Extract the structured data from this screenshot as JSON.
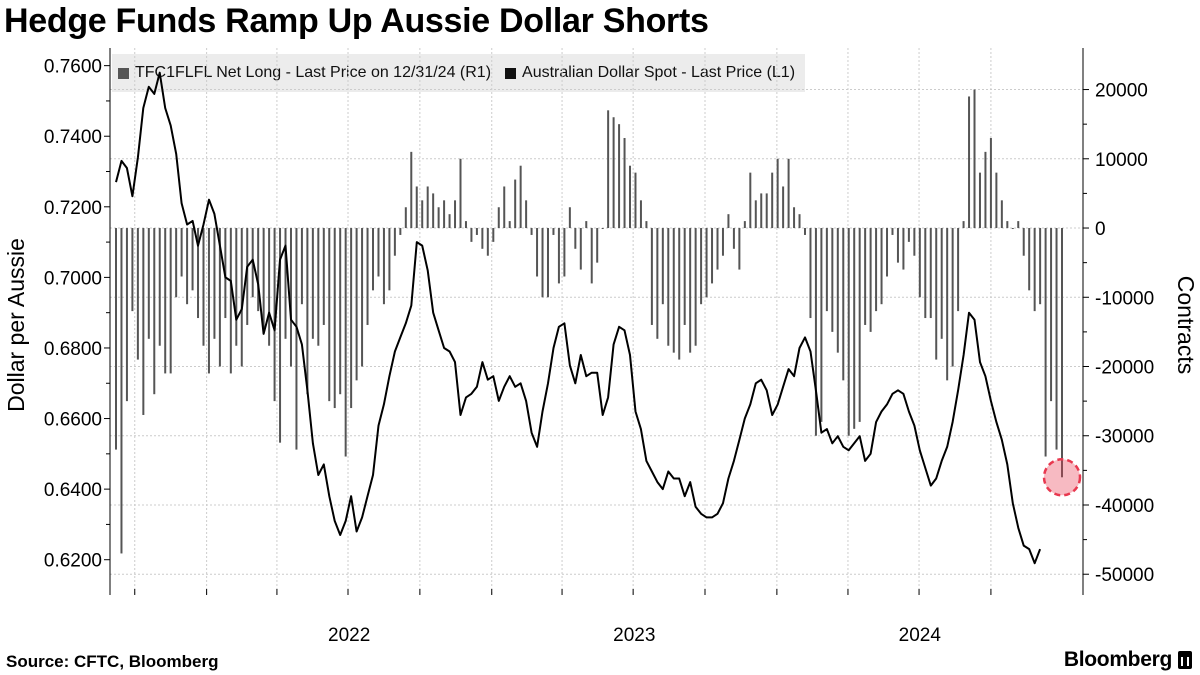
{
  "header": {
    "title": "Hedge Funds Ramp Up Aussie Dollar Shorts"
  },
  "footer": {
    "source": "Source: CFTC, Bloomberg",
    "brand": "Bloomberg"
  },
  "chart_data": {
    "type": "line+bar",
    "title": "Hedge Funds Ramp Up Aussie Dollar Shorts",
    "ylabel_left": "Dollar per Aussie",
    "ylabel_right": "Contracts",
    "ylim_left": [
      0.61,
      0.765
    ],
    "ylim_right": [
      -53000,
      26000
    ],
    "yticks_left": [
      "0.7600",
      "0.7400",
      "0.7200",
      "0.7000",
      "0.6800",
      "0.6600",
      "0.6400",
      "0.6200"
    ],
    "yticks_right": [
      "20000",
      "10000",
      "0",
      "-10000",
      "-20000",
      "-30000",
      "-40000",
      "-50000"
    ],
    "xticks": [
      "2022",
      "2023",
      "2024"
    ],
    "grid": true,
    "legend_position": "top",
    "colors": {
      "bars": "#555555",
      "line": "#000000",
      "highlight": "#e8384f",
      "grid": "#cccccc"
    },
    "series": [
      {
        "name": "TFC1FLFL Net Long - Last Price on 12/31/24 (R1)",
        "type": "bar",
        "axis": "right",
        "frequency": "weekly",
        "start": "2021-09-07",
        "values": [
          -32000,
          -47000,
          -25000,
          -12000,
          -19000,
          -27000,
          -16000,
          -24000,
          -17000,
          -21000,
          -21000,
          -10000,
          -7000,
          -11000,
          -9000,
          -13000,
          -17000,
          -21000,
          -16000,
          -20000,
          -13000,
          -21000,
          -17000,
          -20000,
          -14000,
          -10000,
          -12000,
          -15000,
          -17000,
          -25000,
          -31000,
          -16000,
          -20000,
          -32000,
          -11000,
          -24000,
          -16000,
          -17000,
          -14000,
          -25000,
          -26000,
          -24000,
          -33000,
          -26000,
          -22000,
          -20000,
          -14000,
          -9000,
          -7000,
          -11000,
          -9000,
          -4000,
          -1000,
          3000,
          11000,
          6000,
          4000,
          6000,
          5000,
          3000,
          4000,
          2000,
          4000,
          10000,
          1000,
          -2000,
          -1000,
          -3000,
          -4000,
          -2000,
          3000,
          6000,
          1000,
          7000,
          9000,
          4000,
          -1000,
          -7000,
          -10000,
          -10000,
          -1000,
          -8000,
          -7000,
          3000,
          -3000,
          -6000,
          1000,
          -8000,
          -5000,
          0,
          17000,
          16000,
          15000,
          13000,
          9000,
          8000,
          4000,
          1000,
          -14000,
          -16000,
          -11000,
          -17000,
          -18000,
          -19000,
          -14000,
          -18000,
          -17000,
          -11000,
          -10000,
          -8000,
          -6000,
          -4000,
          2000,
          -3000,
          -6000,
          1000,
          8000,
          4000,
          5000,
          5000,
          8000,
          10000,
          6000,
          10000,
          3000,
          2000,
          -1000,
          -13000,
          -30000,
          -28000,
          -12000,
          -15000,
          -18000,
          -22000,
          -30000,
          -29000,
          -28000,
          -14000,
          -15000,
          -12000,
          -11000,
          -7000,
          -1000,
          -5000,
          -6000,
          -2000,
          -4000,
          -10000,
          -13000,
          -13000,
          -19000,
          -16000,
          -22000,
          -20000,
          -12000,
          1000,
          19000,
          20000,
          8000,
          11000,
          13000,
          8000,
          4000,
          1000,
          0,
          1000,
          -4000,
          -9000,
          -12000,
          -11000,
          -33000,
          -25000,
          -32000,
          -36000
        ]
      },
      {
        "name": "Australian Dollar Spot - Last Price (L1)",
        "type": "line",
        "axis": "left",
        "frequency": "weekly",
        "start": "2021-09-07",
        "values": [
          0.727,
          0.733,
          0.731,
          0.723,
          0.734,
          0.748,
          0.754,
          0.752,
          0.758,
          0.748,
          0.743,
          0.735,
          0.721,
          0.715,
          0.716,
          0.709,
          0.715,
          0.722,
          0.718,
          0.709,
          0.7,
          0.699,
          0.688,
          0.691,
          0.703,
          0.705,
          0.698,
          0.684,
          0.69,
          0.685,
          0.705,
          0.709,
          0.688,
          0.686,
          0.681,
          0.668,
          0.653,
          0.644,
          0.647,
          0.638,
          0.631,
          0.627,
          0.631,
          0.638,
          0.628,
          0.632,
          0.638,
          0.644,
          0.658,
          0.664,
          0.672,
          0.679,
          0.683,
          0.687,
          0.692,
          0.71,
          0.709,
          0.702,
          0.69,
          0.685,
          0.68,
          0.679,
          0.676,
          0.661,
          0.666,
          0.667,
          0.669,
          0.676,
          0.671,
          0.672,
          0.665,
          0.669,
          0.672,
          0.669,
          0.67,
          0.665,
          0.656,
          0.652,
          0.662,
          0.67,
          0.68,
          0.686,
          0.687,
          0.675,
          0.67,
          0.678,
          0.672,
          0.673,
          0.673,
          0.661,
          0.666,
          0.681,
          0.686,
          0.685,
          0.678,
          0.662,
          0.657,
          0.648,
          0.645,
          0.642,
          0.64,
          0.645,
          0.643,
          0.643,
          0.638,
          0.642,
          0.635,
          0.633,
          0.632,
          0.632,
          0.633,
          0.636,
          0.643,
          0.648,
          0.654,
          0.66,
          0.664,
          0.67,
          0.671,
          0.668,
          0.661,
          0.664,
          0.669,
          0.674,
          0.672,
          0.68,
          0.683,
          0.679,
          0.668,
          0.656,
          0.657,
          0.653,
          0.655,
          0.652,
          0.651,
          0.653,
          0.655,
          0.648,
          0.65,
          0.659,
          0.662,
          0.664,
          0.667,
          0.668,
          0.667,
          0.662,
          0.658,
          0.651,
          0.646,
          0.641,
          0.643,
          0.648,
          0.652,
          0.659,
          0.668,
          0.678,
          0.69,
          0.688,
          0.676,
          0.672,
          0.665,
          0.659,
          0.654,
          0.647,
          0.636,
          0.629,
          0.624,
          0.623,
          0.619,
          0.623
        ]
      }
    ],
    "annotations": [
      {
        "type": "highlight-circle",
        "label": "latest"
      }
    ]
  }
}
